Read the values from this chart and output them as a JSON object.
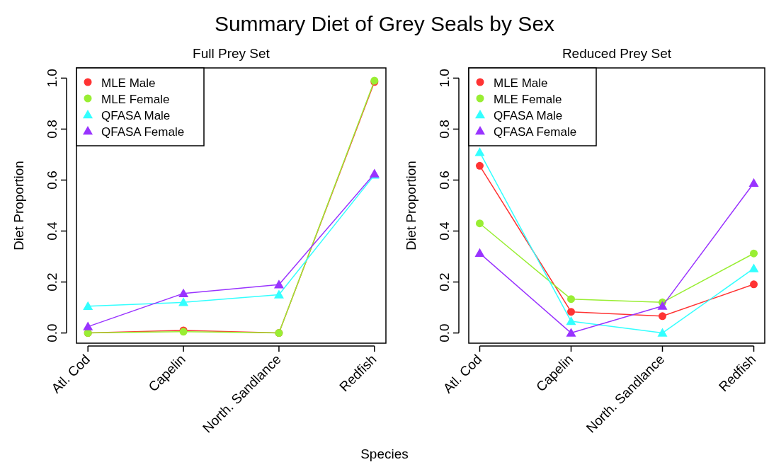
{
  "chart_data": [
    {
      "type": "line",
      "title": "Summary Diet of Grey Seals by Sex",
      "subtitle": "Full Prey Set",
      "xlabel": "Species",
      "ylabel": "Diet Proportion",
      "categories": [
        "Atl. Cod",
        "Capelin",
        "North. Sandlance",
        "Redfish"
      ],
      "ylim": [
        -0.04,
        1.04
      ],
      "yticks": [
        {
          "value": 0,
          "label": "0.0"
        },
        {
          "value": 0.2,
          "label": "0.2"
        },
        {
          "value": 0.4,
          "label": "0.4"
        },
        {
          "value": 0.6,
          "label": "0.6"
        },
        {
          "value": 0.8,
          "label": "0.8"
        },
        {
          "value": 1,
          "label": "1.0"
        }
      ],
      "legend": "top left",
      "grid": false,
      "line_style": "solid",
      "series": [
        {
          "name": "MLE Male",
          "color": "#ff3333",
          "marker": "circle",
          "values": [
            0,
            0.01,
            0,
            0.985
          ]
        },
        {
          "name": "MLE Female",
          "color": "#99ee33",
          "marker": "circle",
          "values": [
            0,
            0.005,
            0,
            0.99
          ]
        },
        {
          "name": "QFASA Male",
          "color": "#33ffff",
          "marker": "triangle",
          "values": [
            0.105,
            0.12,
            0.15,
            0.62
          ]
        },
        {
          "name": "QFASA Female",
          "color": "#9933ff",
          "marker": "triangle",
          "values": [
            0.025,
            0.155,
            0.19,
            0.625
          ]
        }
      ]
    },
    {
      "type": "line",
      "subtitle": "Reduced Prey Set",
      "ylabel": "Diet Proportion",
      "categories": [
        "Atl. Cod",
        "Capelin",
        "North. Sandlance",
        "Redfish"
      ],
      "ylim": [
        -0.04,
        1.04
      ],
      "yticks": [
        {
          "value": 0,
          "label": "0.0"
        },
        {
          "value": 0.2,
          "label": "0.2"
        },
        {
          "value": 0.4,
          "label": "0.4"
        },
        {
          "value": 0.6,
          "label": "0.6"
        },
        {
          "value": 0.8,
          "label": "0.8"
        },
        {
          "value": 1,
          "label": "1.0"
        }
      ],
      "legend": "top left",
      "grid": false,
      "line_style": "solid",
      "series": [
        {
          "name": "MLE Male",
          "color": "#ff3333",
          "marker": "circle",
          "values": [
            0.656,
            0.083,
            0.066,
            0.191
          ]
        },
        {
          "name": "MLE Female",
          "color": "#99ee33",
          "marker": "circle",
          "values": [
            0.43,
            0.133,
            0.12,
            0.312
          ]
        },
        {
          "name": "QFASA Male",
          "color": "#33ffff",
          "marker": "triangle",
          "values": [
            0.709,
            0.046,
            0,
            0.253
          ]
        },
        {
          "name": "QFASA Female",
          "color": "#9933ff",
          "marker": "triangle",
          "values": [
            0.313,
            0,
            0.106,
            0.588
          ]
        }
      ]
    }
  ]
}
